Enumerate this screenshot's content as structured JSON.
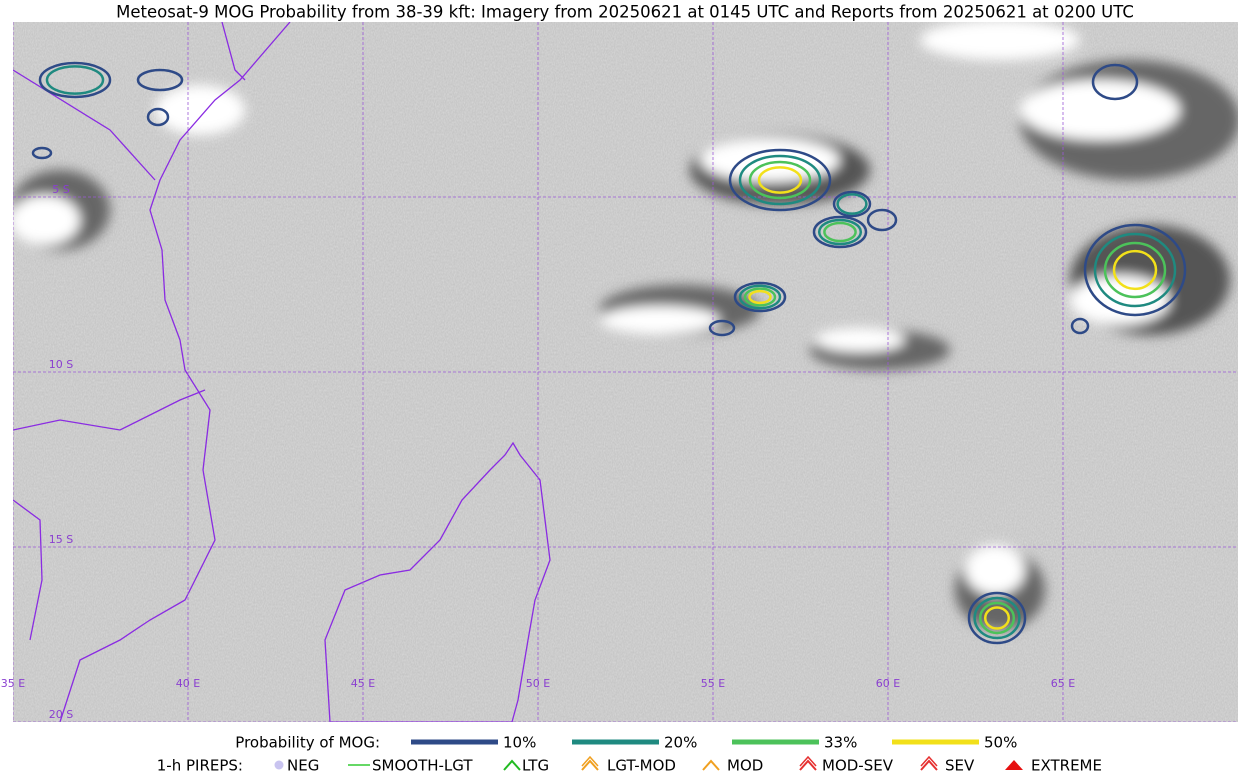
{
  "title": "Meteosat-9 MOG Probability from 38-39 kft: Imagery from 20250621 at 0145 UTC and Reports from 20250621 at 0200 UTC",
  "map": {
    "lon_range": [
      35,
      70
    ],
    "lat_range": [
      0,
      -20
    ],
    "meridians": [
      {
        "value": 35,
        "label": "35 E"
      },
      {
        "value": 40,
        "label": "40 E"
      },
      {
        "value": 45,
        "label": "45 E"
      },
      {
        "value": 50,
        "label": "50 E"
      },
      {
        "value": 55,
        "label": "55 E"
      },
      {
        "value": 60,
        "label": "60 E"
      },
      {
        "value": 65,
        "label": "65 E"
      }
    ],
    "parallels": [
      {
        "value": -5,
        "label": "5 S"
      },
      {
        "value": -10,
        "label": "10 S"
      },
      {
        "value": -15,
        "label": "15 S"
      },
      {
        "value": -20,
        "label": "20 S"
      }
    ],
    "grid_color": "#9b59d6"
  },
  "legend": {
    "probability_title": "Probability of MOG:",
    "levels": [
      {
        "name": "10%",
        "color": "#2e4a87"
      },
      {
        "name": "20%",
        "color": "#1f8a80"
      },
      {
        "name": "33%",
        "color": "#4cc25a"
      },
      {
        "name": "50%",
        "color": "#f2e01a"
      }
    ],
    "pireps_title": "1-h PIREPS:",
    "pireps": [
      {
        "name": "NEG",
        "color": "#c9c4f0"
      },
      {
        "name": "SMOOTH-LGT",
        "color": "#33cc33"
      },
      {
        "name": "LTG",
        "color": "#22bb22"
      },
      {
        "name": "LGT-MOD",
        "color": "#f0a020"
      },
      {
        "name": "MOD",
        "color": "#f0a020"
      },
      {
        "name": "MOD-SEV",
        "color": "#e63030"
      },
      {
        "name": "SEV",
        "color": "#e63030"
      },
      {
        "name": "EXTREME",
        "color": "#e61010"
      }
    ]
  }
}
